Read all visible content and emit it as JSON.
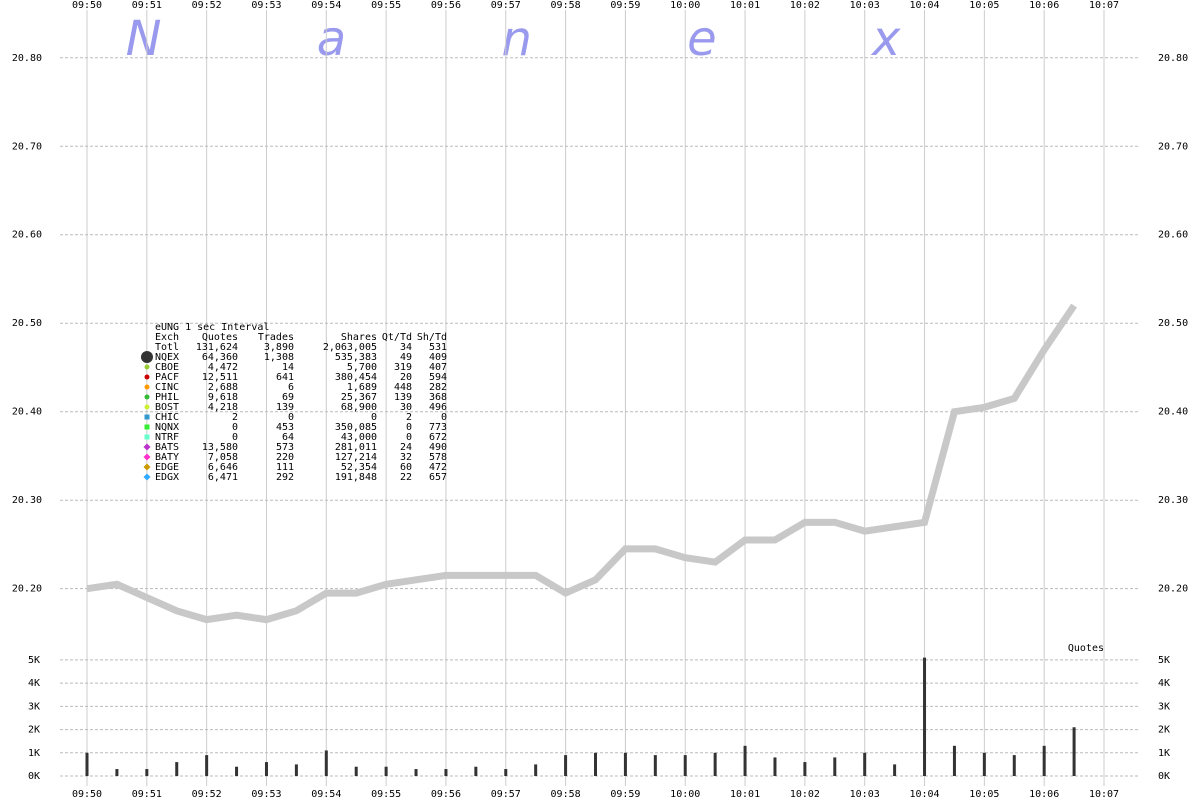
{
  "watermark": "N a n e x",
  "chart_data": [
    {
      "type": "line",
      "categories": [
        "09:50",
        null,
        "09:51",
        null,
        "09:52",
        null,
        "09:53",
        null,
        "09:54",
        null,
        "09:55",
        null,
        "09:56",
        null,
        "09:57",
        null,
        "09:58",
        null,
        "09:59",
        null,
        "10:00",
        null,
        "10:01",
        null,
        "10:02",
        null,
        "10:03",
        null,
        "10:04",
        null,
        "10:05",
        null,
        "10:06",
        null,
        "10:07"
      ],
      "series": [
        {
          "name": "eUNG",
          "color": "#c8c8c8",
          "values": [
            20.2,
            20.205,
            20.19,
            20.175,
            20.165,
            20.17,
            20.165,
            20.175,
            20.195,
            20.195,
            20.205,
            20.21,
            20.215,
            20.215,
            20.215,
            20.215,
            20.195,
            20.21,
            20.245,
            20.245,
            20.235,
            20.23,
            20.255,
            20.255,
            20.275,
            20.275,
            20.265,
            20.27,
            20.275,
            20.4,
            20.405,
            20.415,
            20.47,
            20.52,
            null
          ]
        }
      ],
      "ylim": [
        20.142,
        20.854
      ],
      "yticks": [
        {
          "value": 20.2,
          "label": "20.20"
        },
        {
          "value": 20.3,
          "label": "20.30"
        },
        {
          "value": 20.4,
          "label": "20.40"
        },
        {
          "value": 20.5,
          "label": "20.50"
        },
        {
          "value": 20.6,
          "label": "20.60"
        },
        {
          "value": 20.7,
          "label": "20.70"
        },
        {
          "value": 20.8,
          "label": "20.80"
        }
      ],
      "grid": true
    },
    {
      "type": "bar",
      "title": "Quotes",
      "color": "#333333",
      "values": [
        1.0,
        0.3,
        0.3,
        0.6,
        0.9,
        0.4,
        0.6,
        0.5,
        1.1,
        0.4,
        0.4,
        0.3,
        0.3,
        0.4,
        0.3,
        0.5,
        0.9,
        1.0,
        1.0,
        0.9,
        0.9,
        1.0,
        1.3,
        0.8,
        0.6,
        0.8,
        1.0,
        0.5,
        5.1,
        1.3,
        1.0,
        0.9,
        1.3,
        2.1,
        null
      ],
      "ylim": [
        0,
        5.6
      ],
      "yticks": [
        {
          "value": 0,
          "label": "0K"
        },
        {
          "value": 1,
          "label": "1K"
        },
        {
          "value": 2,
          "label": "2K"
        },
        {
          "value": 3,
          "label": "3K"
        },
        {
          "value": 4,
          "label": "4K"
        },
        {
          "value": 5,
          "label": "5K"
        }
      ],
      "grid": true
    }
  ],
  "stats_table": {
    "title": "eUNG 1 sec Interval",
    "columns": [
      "Exch",
      "Quotes",
      "Trades",
      "Shares",
      "Qt/Td",
      "Sh/Td"
    ],
    "rows": [
      {
        "cells": [
          "Totl",
          "131,624",
          "3,890",
          "2,063,005",
          "34",
          "531"
        ]
      },
      {
        "cells": [
          "NQEX",
          "64,360",
          "1,308",
          "535,383",
          "49",
          "409"
        ],
        "color": "#333333",
        "marker": "big-circle"
      },
      {
        "cells": [
          "CBOE",
          "4,472",
          "14",
          "5,700",
          "319",
          "407"
        ],
        "color": "#99cc33",
        "marker": "circle"
      },
      {
        "cells": [
          "PACF",
          "12,511",
          "641",
          "380,454",
          "20",
          "594"
        ],
        "color": "#cc0000",
        "marker": "circle"
      },
      {
        "cells": [
          "CINC",
          "2,688",
          "6",
          "1,689",
          "448",
          "282"
        ],
        "color": "#ff9900",
        "marker": "circle"
      },
      {
        "cells": [
          "PHIL",
          "9,618",
          "69",
          "25,367",
          "139",
          "368"
        ],
        "color": "#33bb33",
        "marker": "circle"
      },
      {
        "cells": [
          "BOST",
          "4,218",
          "139",
          "68,900",
          "30",
          "496"
        ],
        "color": "#ccee33",
        "marker": "circle"
      },
      {
        "cells": [
          "CHIC",
          "2",
          "0",
          "0",
          "2",
          "0"
        ],
        "color": "#3399cc",
        "marker": "square"
      },
      {
        "cells": [
          "NQNX",
          "0",
          "453",
          "350,085",
          "0",
          "773"
        ],
        "color": "#33ee33",
        "marker": "square"
      },
      {
        "cells": [
          "NTRF",
          "0",
          "64",
          "43,000",
          "0",
          "672"
        ],
        "color": "#66ffcc",
        "marker": "square"
      },
      {
        "cells": [
          "BATS",
          "13,580",
          "573",
          "281,011",
          "24",
          "490"
        ],
        "color": "#bb33cc",
        "marker": "diamond"
      },
      {
        "cells": [
          "BATY",
          "7,058",
          "220",
          "127,214",
          "32",
          "578"
        ],
        "color": "#ff33cc",
        "marker": "diamond"
      },
      {
        "cells": [
          "EDGE",
          "6,646",
          "111",
          "52,354",
          "60",
          "472"
        ],
        "color": "#cc9900",
        "marker": "diamond"
      },
      {
        "cells": [
          "EDGX",
          "6,471",
          "292",
          "191,848",
          "22",
          "657"
        ],
        "color": "#33aaff",
        "marker": "diamond"
      }
    ]
  }
}
